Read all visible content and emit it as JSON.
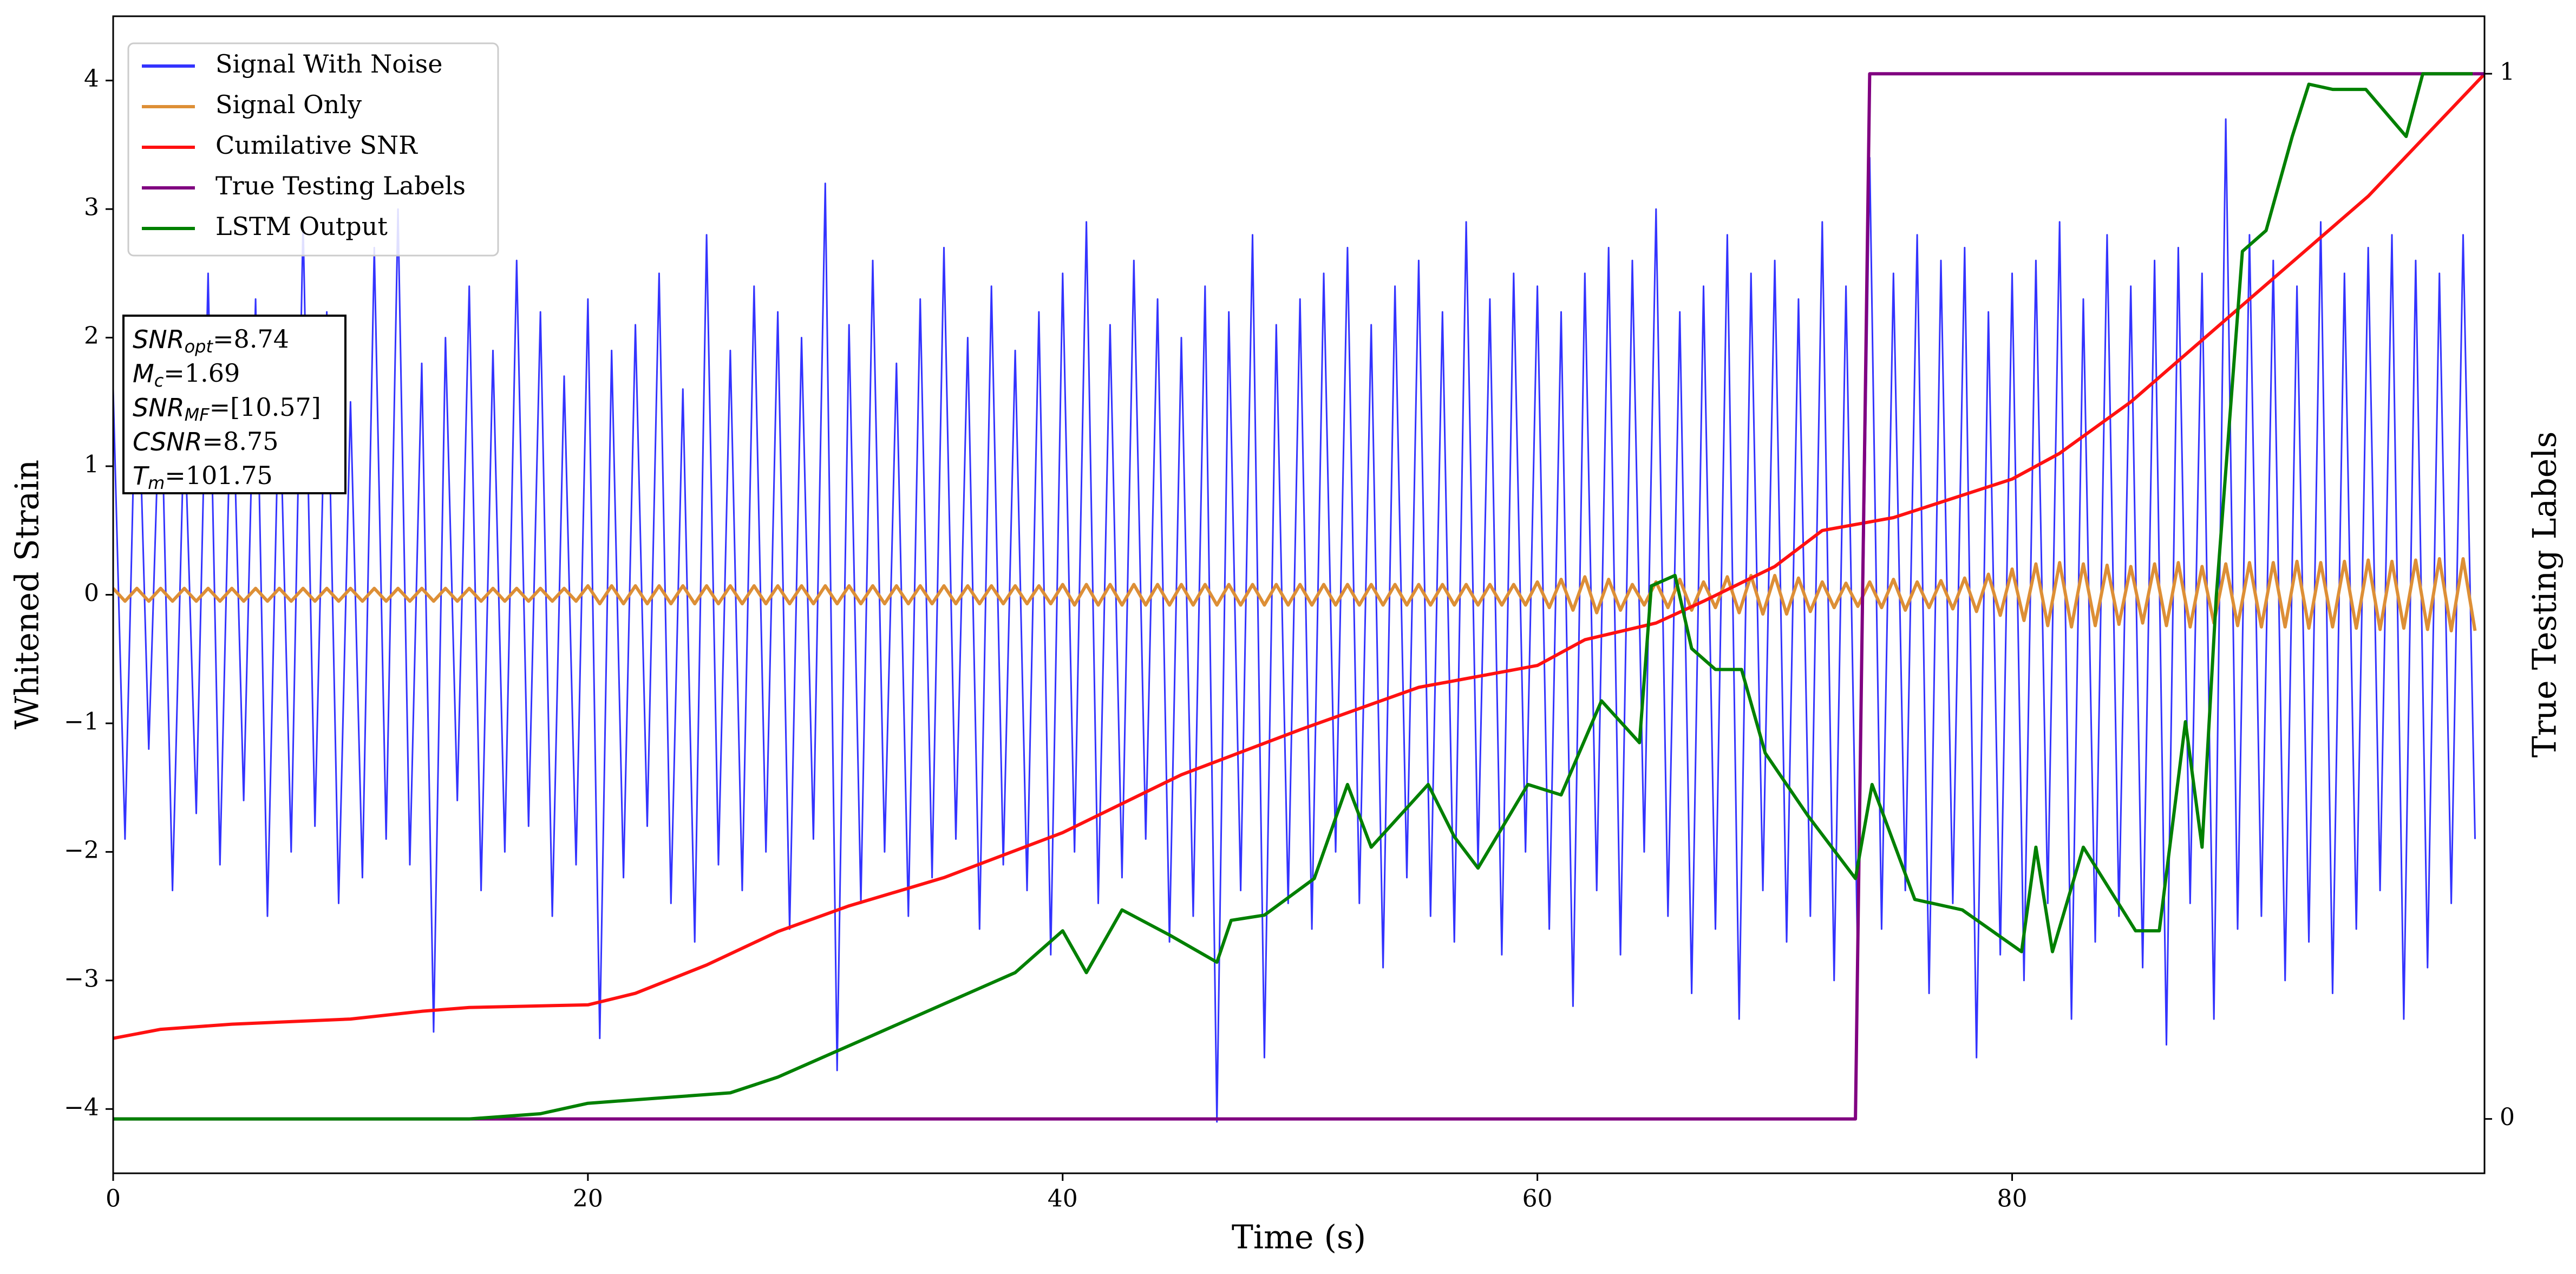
{
  "chart_data": {
    "type": "line",
    "xlabel": "Time (s)",
    "ylabel": "Whitened Strain",
    "y2label": "True Testing Labels",
    "xlim": [
      0,
      99.9
    ],
    "ylim": [
      -4.5,
      4.5
    ],
    "y2lim": [
      -0.052,
      1.055
    ],
    "xticks": [
      0,
      20,
      40,
      60,
      80
    ],
    "yticks": [
      {
        "value": -4,
        "label": "−4"
      },
      {
        "value": -3,
        "label": "−3"
      },
      {
        "value": -2,
        "label": "−2"
      },
      {
        "value": -1,
        "label": "−1"
      },
      0,
      1,
      2,
      3,
      4
    ],
    "y2ticks": [
      0,
      1
    ],
    "legend": "upper left",
    "x": [
      0,
      0.5,
      1,
      1.5,
      2,
      2.5,
      3,
      3.5,
      4,
      4.5,
      5,
      5.5,
      6,
      6.5,
      7,
      7.5,
      8,
      8.5,
      9,
      9.5,
      10,
      10.5,
      11,
      11.5,
      12,
      12.5,
      13,
      13.5,
      14,
      14.5,
      15,
      15.5,
      16,
      16.5,
      17,
      17.5,
      18,
      18.5,
      19,
      19.5,
      20,
      20.5,
      21,
      21.5,
      22,
      22.5,
      23,
      23.5,
      24,
      24.5,
      25,
      25.5,
      26,
      26.5,
      27,
      27.5,
      28,
      28.5,
      29,
      29.5,
      30,
      30.5,
      31,
      31.5,
      32,
      32.5,
      33,
      33.5,
      34,
      34.5,
      35,
      35.5,
      36,
      36.5,
      37,
      37.5,
      38,
      38.5,
      39,
      39.5,
      40,
      40.5,
      41,
      41.5,
      42,
      42.5,
      43,
      43.5,
      44,
      44.5,
      45,
      45.5,
      46,
      46.5,
      47,
      47.5,
      48,
      48.5,
      49,
      49.5,
      50,
      50.5,
      51,
      51.5,
      52,
      52.5,
      53,
      53.5,
      54,
      54.5,
      55,
      55.5,
      56,
      56.5,
      57,
      57.5,
      58,
      58.5,
      59,
      59.5,
      60,
      60.5,
      61,
      61.5,
      62,
      62.5,
      63,
      63.5,
      64,
      64.5,
      65,
      65.5,
      66,
      66.5,
      67,
      67.5,
      68,
      68.5,
      69,
      69.5,
      70,
      70.5,
      71,
      71.5,
      72,
      72.5,
      73,
      73.5,
      74,
      74.5,
      75,
      75.5,
      76,
      76.5,
      77,
      77.5,
      78,
      78.5,
      79,
      79.5,
      80,
      80.5,
      81,
      81.5,
      82,
      82.5,
      83,
      83.5,
      84,
      84.5,
      85,
      85.5,
      86,
      86.5,
      87,
      87.5,
      88,
      88.5,
      89,
      89.5,
      90,
      90.5,
      91,
      91.5,
      92,
      92.5,
      93,
      93.5,
      94,
      94.5,
      95,
      95.5,
      96,
      96.5,
      97,
      97.5,
      98,
      98.5,
      99,
      99.5
    ],
    "series": [
      {
        "name": "Signal With Noise",
        "color": "#3333ff",
        "values": [
          1.6,
          -1.9,
          2.1,
          -1.2,
          1.8,
          -2.3,
          1.4,
          -1.7,
          2.5,
          -2.1,
          1.9,
          -1.6,
          2.3,
          -2.5,
          1.7,
          -2.0,
          2.9,
          -1.8,
          2.2,
          -2.4,
          1.5,
          -2.2,
          2.7,
          -1.9,
          3.0,
          -2.1,
          1.8,
          -3.4,
          2.0,
          -1.6,
          2.4,
          -2.3,
          1.9,
          -2.0,
          2.6,
          -1.8,
          2.2,
          -2.5,
          1.7,
          -2.1,
          2.3,
          -3.45,
          1.9,
          -2.2,
          2.1,
          -1.8,
          2.5,
          -2.4,
          1.6,
          -2.7,
          2.8,
          -2.1,
          1.9,
          -2.3,
          2.4,
          -2.0,
          2.2,
          -2.6,
          2.0,
          -1.9,
          3.2,
          -3.7,
          2.1,
          -2.4,
          2.6,
          -2.0,
          1.8,
          -2.5,
          2.3,
          -2.2,
          2.7,
          -1.9,
          2.0,
          -2.6,
          2.4,
          -2.1,
          1.9,
          -2.3,
          2.2,
          -2.8,
          2.5,
          -2.0,
          2.9,
          -2.4,
          2.1,
          -2.2,
          2.6,
          -1.9,
          2.3,
          -2.7,
          2.0,
          -2.5,
          2.4,
          -4.1,
          2.2,
          -2.3,
          2.8,
          -3.6,
          2.1,
          -2.4,
          2.3,
          -2.6,
          2.5,
          -2.0,
          2.7,
          -2.4,
          2.1,
          -2.9,
          2.4,
          -2.2,
          2.6,
          -2.5,
          2.2,
          -2.7,
          2.9,
          -2.1,
          2.3,
          -2.8,
          2.5,
          -2.0,
          2.4,
          -2.6,
          2.2,
          -3.2,
          2.5,
          -2.3,
          2.7,
          -2.8,
          2.6,
          -2.0,
          3.0,
          -2.5,
          2.2,
          -3.1,
          2.4,
          -2.6,
          2.8,
          -3.3,
          2.5,
          -2.3,
          2.6,
          -2.7,
          2.3,
          -2.5,
          2.9,
          -3.0,
          2.4,
          -2.9,
          3.4,
          -2.6,
          2.5,
          -2.3,
          2.8,
          -3.1,
          2.6,
          -2.4,
          2.7,
          -3.6,
          2.2,
          -2.8,
          2.5,
          -3.0,
          2.6,
          -2.4,
          2.9,
          -3.3,
          2.3,
          -2.7,
          2.8,
          -2.5,
          2.4,
          -2.9,
          2.6,
          -3.5,
          2.7,
          -2.4,
          2.5,
          -3.3,
          3.7,
          -2.6,
          2.8,
          -2.5,
          2.6,
          -3.0,
          2.4,
          -2.7,
          2.9,
          -3.1,
          2.5,
          -2.6,
          2.7,
          -2.3,
          2.8,
          -3.3,
          2.6,
          -2.9,
          2.5,
          -2.4,
          2.8,
          -1.9
        ]
      },
      {
        "name": "Signal Only",
        "color": "#dd8f36",
        "values": [
          0.05,
          -0.05,
          0.05,
          -0.05,
          0.05,
          -0.05,
          0.05,
          -0.05,
          0.05,
          -0.05,
          0.05,
          -0.05,
          0.05,
          -0.05,
          0.05,
          -0.05,
          0.05,
          -0.05,
          0.05,
          -0.05,
          0.05,
          -0.05,
          0.05,
          -0.05,
          0.05,
          -0.05,
          0.05,
          -0.05,
          0.05,
          -0.05,
          0.05,
          -0.05,
          0.05,
          -0.05,
          0.05,
          -0.05,
          0.05,
          -0.05,
          0.05,
          -0.05,
          0.07,
          -0.07,
          0.07,
          -0.07,
          0.07,
          -0.07,
          0.07,
          -0.07,
          0.07,
          -0.07,
          0.07,
          -0.07,
          0.07,
          -0.07,
          0.07,
          -0.07,
          0.07,
          -0.07,
          0.07,
          -0.07,
          0.07,
          -0.07,
          0.07,
          -0.07,
          0.07,
          -0.07,
          0.07,
          -0.07,
          0.07,
          -0.07,
          0.07,
          -0.07,
          0.07,
          -0.07,
          0.07,
          -0.07,
          0.07,
          -0.07,
          0.07,
          -0.07,
          0.08,
          -0.08,
          0.08,
          -0.08,
          0.08,
          -0.08,
          0.08,
          -0.08,
          0.08,
          -0.08,
          0.08,
          -0.08,
          0.08,
          -0.08,
          0.08,
          -0.08,
          0.08,
          -0.08,
          0.08,
          -0.08,
          0.08,
          -0.08,
          0.08,
          -0.08,
          0.08,
          -0.08,
          0.08,
          -0.08,
          0.08,
          -0.08,
          0.08,
          -0.08,
          0.08,
          -0.08,
          0.08,
          -0.08,
          0.08,
          -0.08,
          0.08,
          -0.08,
          0.1,
          -0.1,
          0.12,
          -0.12,
          0.14,
          -0.14,
          0.12,
          -0.12,
          0.08,
          -0.08,
          0.1,
          -0.1,
          0.12,
          -0.12,
          0.1,
          -0.1,
          0.14,
          -0.14,
          0.15,
          -0.15,
          0.15,
          -0.15,
          0.13,
          -0.13,
          0.1,
          -0.1,
          0.09,
          -0.09,
          0.1,
          -0.1,
          0.12,
          -0.12,
          0.1,
          -0.1,
          0.11,
          -0.11,
          0.13,
          -0.13,
          0.16,
          -0.16,
          0.2,
          -0.2,
          0.24,
          -0.24,
          0.25,
          -0.25,
          0.24,
          -0.24,
          0.23,
          -0.23,
          0.22,
          -0.22,
          0.24,
          -0.24,
          0.25,
          -0.25,
          0.22,
          -0.22,
          0.24,
          -0.24,
          0.25,
          -0.25,
          0.25,
          -0.25,
          0.26,
          -0.26,
          0.25,
          -0.25,
          0.26,
          -0.26,
          0.27,
          -0.27,
          0.26,
          -0.26,
          0.27,
          -0.27,
          0.28,
          -0.28,
          0.28,
          -0.28
        ]
      },
      {
        "name": "Cumilative SNR",
        "color": "#ff1111",
        "x": [
          0,
          2,
          5,
          10,
          13,
          15,
          20,
          22,
          25,
          28,
          31,
          35,
          40,
          45,
          50,
          55,
          60,
          62,
          65,
          67,
          70,
          72,
          75,
          80,
          82,
          85,
          90,
          95,
          99.9
        ],
        "values": [
          -3.45,
          -3.38,
          -3.34,
          -3.3,
          -3.24,
          -3.21,
          -3.19,
          -3.1,
          -2.88,
          -2.62,
          -2.42,
          -2.2,
          -1.85,
          -1.4,
          -1.05,
          -0.72,
          -0.55,
          -0.35,
          -0.22,
          -0.05,
          0.22,
          0.5,
          0.6,
          0.9,
          1.1,
          1.5,
          2.3,
          3.1,
          4.05
        ]
      },
      {
        "name": "True Testing Labels",
        "color": "#800080",
        "axis": "y2",
        "x": [
          0,
          73.4,
          74.0,
          99.9
        ],
        "values": [
          0,
          0,
          1,
          1
        ]
      },
      {
        "name": "LSTM Output",
        "color": "#008000",
        "axis": "y2",
        "x": [
          0,
          15,
          18,
          20,
          23,
          26,
          28,
          30,
          32,
          35,
          38,
          40,
          41,
          42.5,
          44.5,
          46.5,
          47.1,
          48.5,
          50.6,
          52,
          53,
          55.4,
          56.5,
          57.5,
          59.6,
          61,
          62.7,
          64.3,
          64.8,
          65.8,
          66.5,
          67.5,
          68.6,
          69.6,
          71.4,
          73.4,
          74.1,
          75.9,
          77.9,
          80.4,
          81,
          81.7,
          83,
          85.2,
          86.2,
          87.3,
          88,
          88.6,
          89.7,
          90.7,
          91.8,
          92.5,
          93.5,
          94.9,
          96.6,
          97.3,
          99.4
        ],
        "values": [
          0,
          0,
          0.005,
          0.015,
          0.02,
          0.025,
          0.04,
          0.06,
          0.08,
          0.11,
          0.14,
          0.18,
          0.14,
          0.2,
          0.176,
          0.15,
          0.19,
          0.195,
          0.23,
          0.32,
          0.26,
          0.32,
          0.27,
          0.24,
          0.32,
          0.31,
          0.4,
          0.36,
          0.51,
          0.52,
          0.45,
          0.43,
          0.43,
          0.35,
          0.29,
          0.23,
          0.32,
          0.21,
          0.2,
          0.16,
          0.26,
          0.16,
          0.26,
          0.18,
          0.18,
          0.38,
          0.26,
          0.5,
          0.83,
          0.85,
          0.94,
          0.99,
          0.985,
          0.985,
          0.94,
          1,
          1
        ]
      }
    ],
    "annotations": [
      {
        "symbol": "SNR",
        "subscript": "opt",
        "text": "=8.74"
      },
      {
        "symbol": "M",
        "subscript": "c",
        "text": "=1.69"
      },
      {
        "symbol": "SNR",
        "subscript": "MF",
        "text": "=[10.57]"
      },
      {
        "symbol": "CSNR",
        "text": "=8.75"
      },
      {
        "symbol": "T",
        "subscript": "m",
        "text": "=101.75"
      }
    ]
  }
}
